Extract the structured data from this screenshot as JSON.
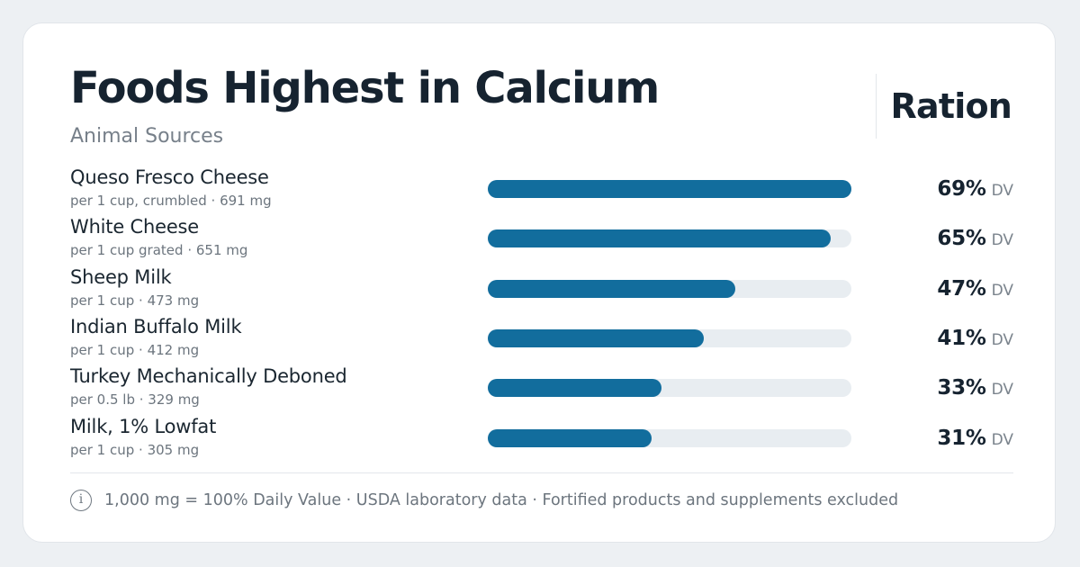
{
  "header": {
    "title": "Foods Highest in Calcium",
    "subtitle": "Animal Sources",
    "brand": "Ration"
  },
  "footer": {
    "icon": "info-icon",
    "icon_glyph": "i",
    "text": "1,000 mg = 100% Daily Value · USDA laboratory data · Fortified products and supplements excluded"
  },
  "colors": {
    "bar_fill": "#126d9d",
    "bar_track": "#e8edf1",
    "background": "#edf0f3",
    "card": "#ffffff"
  },
  "chart_data": {
    "type": "bar",
    "orientation": "horizontal",
    "categories": [
      "Queso Fresco Cheese",
      "White Cheese",
      "Sheep Milk",
      "Indian Buffalo Milk",
      "Turkey Mechanically Deboned",
      "Milk, 1% Lowfat"
    ],
    "serving_labels": [
      "per 1 cup, crumbled · 691 mg",
      "per 1 cup grated · 651 mg",
      "per 1 cup · 473 mg",
      "per 1 cup · 412 mg",
      "per 0.5 lb · 329 mg",
      "per 1 cup · 305 mg"
    ],
    "values": [
      69,
      65,
      47,
      41,
      33,
      31
    ],
    "value_labels": [
      "69%",
      "65%",
      "47%",
      "41%",
      "33%",
      "31%"
    ],
    "unit": "DV",
    "xlim": [
      0,
      69
    ],
    "grid": false,
    "legend": "none"
  }
}
